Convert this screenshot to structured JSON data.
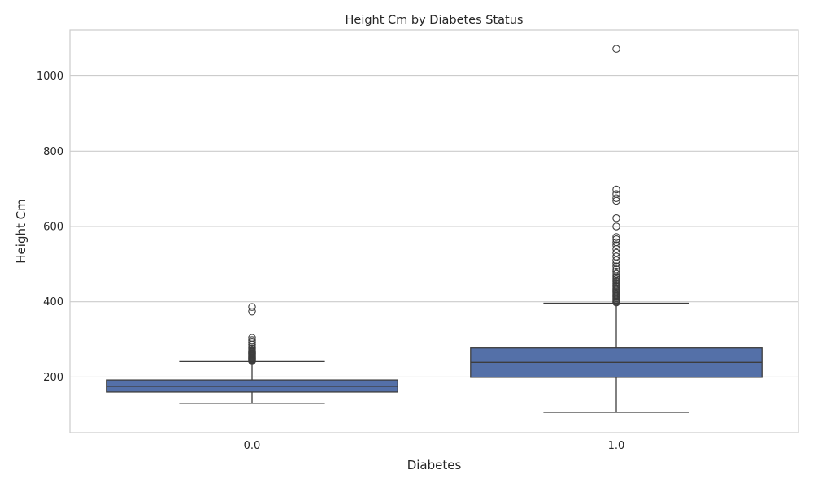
{
  "chart_data": {
    "type": "box",
    "title": "Height Cm by Diabetes Status",
    "xlabel": "Diabetes",
    "ylabel": "Height Cm",
    "ylim": [
      52,
      1122
    ],
    "yticks": [
      200,
      400,
      600,
      800,
      1000
    ],
    "ytick_labels": [
      "200",
      "400",
      "600",
      "800",
      "1000"
    ],
    "grid": true,
    "box_color": "#5470a8",
    "categories": [
      "0.0",
      "1.0"
    ],
    "boxes": [
      {
        "category": "0.0",
        "whisker_low": 130,
        "q1": 160,
        "median": 175,
        "q3": 192,
        "whisker_high": 241,
        "outliers": [
          242,
          244,
          246,
          248,
          250,
          252,
          254,
          256,
          258,
          260,
          262,
          264,
          266,
          268,
          272,
          276,
          280,
          286,
          292,
          298,
          304,
          374,
          386
        ]
      },
      {
        "category": "1.0",
        "whisker_low": 106,
        "q1": 199,
        "median": 239,
        "q3": 277,
        "whisker_high": 396,
        "outliers": [
          398,
          400,
          403,
          406,
          409,
          412,
          415,
          418,
          421,
          424,
          427,
          430,
          433,
          436,
          440,
          444,
          448,
          452,
          456,
          460,
          464,
          468,
          474,
          480,
          486,
          494,
          502,
          510,
          520,
          530,
          540,
          550,
          558,
          566,
          572,
          600,
          622,
          668,
          675,
          686,
          698,
          1072
        ]
      }
    ]
  }
}
